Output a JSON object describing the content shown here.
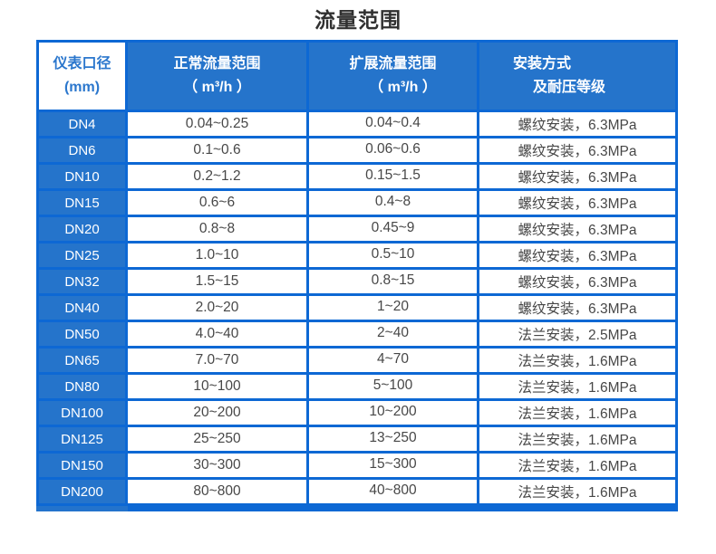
{
  "title": "流量范围",
  "table": {
    "columns": [
      {
        "line1": "仪表口径",
        "line2": "(mm)"
      },
      {
        "line1": "正常流量范围",
        "line2": "（ m³/h ）"
      },
      {
        "line1": "扩展流量范围",
        "line2": "（ m³/h ）"
      },
      {
        "line1": "安装方式",
        "line2": "及耐压等级"
      }
    ],
    "rows": [
      {
        "diameter": "DN4",
        "normal_range": "0.04~0.25",
        "extended_range": "0.04~0.4",
        "installation": "螺纹安装，6.3MPa"
      },
      {
        "diameter": "DN6",
        "normal_range": "0.1~0.6",
        "extended_range": "0.06~0.6",
        "installation": "螺纹安装，6.3MPa"
      },
      {
        "diameter": "DN10",
        "normal_range": "0.2~1.2",
        "extended_range": "0.15~1.5",
        "installation": "螺纹安装，6.3MPa"
      },
      {
        "diameter": "DN15",
        "normal_range": "0.6~6",
        "extended_range": "0.4~8",
        "installation": "螺纹安装，6.3MPa"
      },
      {
        "diameter": "DN20",
        "normal_range": "0.8~8",
        "extended_range": "0.45~9",
        "installation": "螺纹安装，6.3MPa"
      },
      {
        "diameter": "DN25",
        "normal_range": "1.0~10",
        "extended_range": "0.5~10",
        "installation": "螺纹安装，6.3MPa"
      },
      {
        "diameter": "DN32",
        "normal_range": "1.5~15",
        "extended_range": "0.8~15",
        "installation": "螺纹安装，6.3MPa"
      },
      {
        "diameter": "DN40",
        "normal_range": "2.0~20",
        "extended_range": "1~20",
        "installation": "螺纹安装，6.3MPa"
      },
      {
        "diameter": "DN50",
        "normal_range": "4.0~40",
        "extended_range": "2~40",
        "installation": "法兰安装，2.5MPa"
      },
      {
        "diameter": "DN65",
        "normal_range": "7.0~70",
        "extended_range": "4~70",
        "installation": "法兰安装，1.6MPa"
      },
      {
        "diameter": "DN80",
        "normal_range": "10~100",
        "extended_range": "5~100",
        "installation": "法兰安装，1.6MPa"
      },
      {
        "diameter": "DN100",
        "normal_range": "20~200",
        "extended_range": "10~200",
        "installation": "法兰安装，1.6MPa"
      },
      {
        "diameter": "DN125",
        "normal_range": "25~250",
        "extended_range": "13~250",
        "installation": "法兰安装，1.6MPa"
      },
      {
        "diameter": "DN150",
        "normal_range": "30~300",
        "extended_range": "15~300",
        "installation": "法兰安装，1.6MPa"
      },
      {
        "diameter": "DN200",
        "normal_range": "80~800",
        "extended_range": "40~800",
        "installation": "法兰安装，1.6MPa"
      }
    ],
    "colors": {
      "border_blue": "#0d68d4",
      "cell_fill_blue": "#2574cb",
      "header_first_cell_text": "#2b77cd",
      "data_text": "#474747"
    }
  }
}
